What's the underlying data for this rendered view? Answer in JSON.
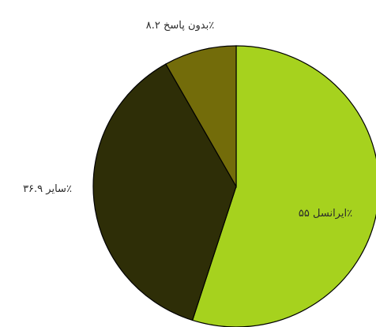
{
  "chart_data": {
    "type": "pie",
    "slices": [
      {
        "label": "ایرانسل ۵۵٪",
        "value": 55,
        "color": "#a6d21e"
      },
      {
        "label": "سایر ۳۶.۹٪",
        "value": 36.9,
        "color": "#2e2e07"
      },
      {
        "label": "بدون پاسخ ۸.۲٪",
        "value": 8.2,
        "color": "#736c0a"
      }
    ],
    "start": "top",
    "direction": "clockwise"
  }
}
